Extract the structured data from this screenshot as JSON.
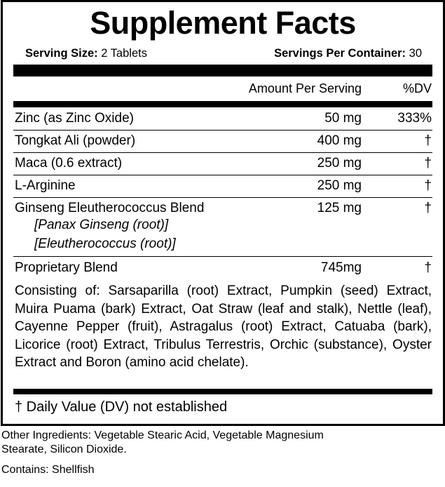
{
  "title": "Supplement Facts",
  "serving_size_label": "Serving Size:",
  "serving_size": "2 Tablets",
  "servings_per_container_label": "Servings Per Container:",
  "servings_per_container": "30",
  "header": {
    "amount": "Amount Per Serving",
    "dv": "%DV"
  },
  "rows": [
    {
      "name": "Zinc (as Zinc Oxide)",
      "amount": "50 mg",
      "dv": "333%"
    },
    {
      "name": "Tongkat Ali (powder)",
      "amount": "400 mg",
      "dv": "†"
    },
    {
      "name": "Maca (0.6 extract)",
      "amount": "250 mg",
      "dv": "†"
    },
    {
      "name": "L-Arginine",
      "amount": "250 mg",
      "dv": "†"
    },
    {
      "name": "Ginseng Eleutherococcus Blend",
      "amount": "125 mg",
      "dv": "†",
      "sub": [
        "[Panax Ginseng (root)]",
        "[Eleutherococcus (root)]"
      ]
    },
    {
      "name": "Proprietary Blend",
      "amount": "745mg",
      "dv": "†"
    }
  ],
  "blend_text": "Consisting of: Sarsaparilla (root) Extract, Pumpkin (seed) Extract, Muira Puama (bark) Extract, Oat Straw (leaf and stalk), Nettle (leaf), Cayenne Pepper (fruit), Astragalus (root) Extract, Catuaba (bark), Licorice (root) Extract, Tribulus Terrestris, Orchic (substance), Oyster Extract and Boron (amino acid chelate).",
  "dv_note": "† Daily Value (DV) not established",
  "other_ingredients": "Other Ingredients: Vegetable Stearic Acid, Vegetable Magnesium Stearate, Silicon Dioxide.",
  "contains": "Contains: Shellfish"
}
